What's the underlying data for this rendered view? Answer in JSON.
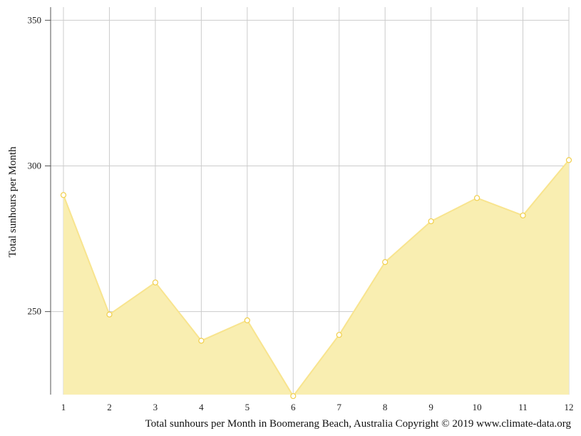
{
  "chart_data": {
    "type": "area",
    "categories": [
      "1",
      "2",
      "3",
      "4",
      "5",
      "6",
      "7",
      "8",
      "9",
      "10",
      "11",
      "12"
    ],
    "series": [
      {
        "values": [
          290,
          249,
          260,
          240,
          247,
          221,
          242,
          267,
          281,
          289,
          283,
          302
        ]
      }
    ],
    "ylabel": "Total sunhours per Month",
    "xlabel": "",
    "caption": "Total sunhours per Month in Boomerang Beach, Australia Copyright © 2019 www.climate-data.org",
    "ylim": [
      221.5,
      354.5
    ],
    "yticks": [
      250,
      300,
      350
    ],
    "grid": true,
    "legend": "none",
    "colors": {
      "fill": "#f9eeb1",
      "line": "#f8e48e",
      "marker_stroke": "#f1cf4b",
      "marker_fill": "#ffffff",
      "grid": "#cccccc",
      "axis": "#555555"
    }
  }
}
